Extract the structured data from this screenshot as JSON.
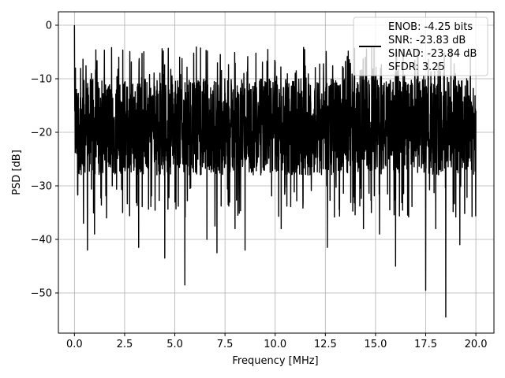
{
  "chart_data": {
    "type": "line",
    "xlabel": "Frequency [MHz]",
    "ylabel": "PSD [dB]",
    "xlim": [
      -0.8,
      20.9
    ],
    "ylim": [
      -57.5,
      2.5
    ],
    "xticks": [
      0.0,
      2.5,
      5.0,
      7.5,
      10.0,
      12.5,
      15.0,
      17.5,
      20.0
    ],
    "xtick_labels": [
      "0.0",
      "2.5",
      "5.0",
      "7.5",
      "10.0",
      "12.5",
      "15.0",
      "17.5",
      "20.0"
    ],
    "yticks": [
      0,
      -10,
      -20,
      -30,
      -40,
      -50
    ],
    "ytick_labels": [
      "0",
      "−10",
      "−20",
      "−30",
      "−40",
      "−50"
    ],
    "grid": true,
    "legend_position": "top-right",
    "legend_entries": [
      "ENOB: -4.25 bits",
      "SNR: -23.83 dB",
      "SINAD: -23.84 dB",
      "SFDR: 3.25"
    ],
    "series": [
      {
        "color": "#000000",
        "x_range": [
          0.0,
          20.0
        ],
        "noise_floor_db": [
          -28,
          -10
        ],
        "values_db_sampled": [
          [
            0.0,
            0.0
          ],
          [
            0.02,
            -16
          ],
          [
            0.05,
            -8
          ],
          [
            0.1,
            -12
          ],
          [
            0.3,
            -27
          ],
          [
            0.45,
            -37
          ],
          [
            0.65,
            -42
          ],
          [
            1.0,
            -39
          ],
          [
            1.6,
            -36
          ],
          [
            2.4,
            -35
          ],
          [
            3.2,
            -41.5
          ],
          [
            4.5,
            -43.5
          ],
          [
            5.5,
            -48.5
          ],
          [
            6.6,
            -40
          ],
          [
            7.0,
            -37.5
          ],
          [
            7.1,
            -42.5
          ],
          [
            8.0,
            -38
          ],
          [
            8.5,
            -42
          ],
          [
            10.3,
            -38
          ],
          [
            12.6,
            -41.5
          ],
          [
            14.4,
            -38
          ],
          [
            15.2,
            -39
          ],
          [
            16.0,
            -45
          ],
          [
            17.5,
            -49.5
          ],
          [
            18.0,
            -38
          ],
          [
            18.5,
            -54.5
          ],
          [
            19.2,
            -41
          ],
          [
            20.0,
            -16
          ]
        ]
      }
    ]
  },
  "colors": {
    "line": "#000000",
    "grid": "#b0b0b0",
    "frame": "#000000"
  }
}
